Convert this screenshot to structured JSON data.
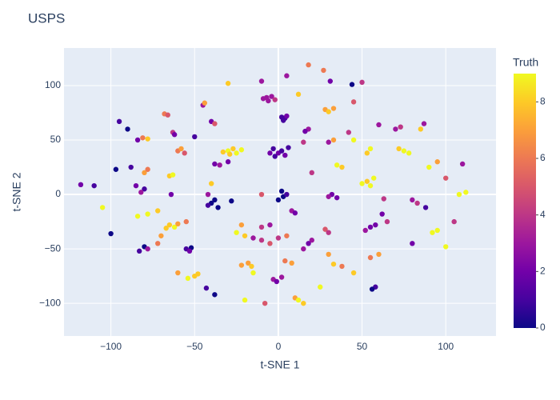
{
  "chart_data": {
    "type": "scatter",
    "title": "USPS",
    "x_label": "t-SNE 1",
    "y_label": "t-SNE 2",
    "xlim": [
      -128,
      130
    ],
    "ylim": [
      -130,
      134.5
    ],
    "xticks": [
      {
        "value": -100,
        "label": "−100"
      },
      {
        "value": -50,
        "label": "−50"
      },
      0,
      50,
      100
    ],
    "yticks": [
      {
        "value": -100,
        "label": "−100"
      },
      {
        "value": -50,
        "label": "−50"
      },
      0,
      50,
      100
    ],
    "grid": true,
    "colorscale": [
      "#0d0887",
      "#46039f",
      "#7201a8",
      "#9c179e",
      "#bd3786",
      "#d8576b",
      "#ed7953",
      "#fb9f3a",
      "#fdca26",
      "#f0f921"
    ],
    "colorbar": {
      "title": "Truth",
      "lim": [
        0,
        9
      ],
      "ticks": [
        0,
        2,
        4,
        6,
        8
      ]
    },
    "x": [
      -7,
      -4,
      -2,
      -6,
      -9,
      2,
      4,
      3,
      5,
      -3,
      0,
      2,
      4,
      -2,
      6,
      -5,
      -30,
      -27,
      -25,
      -33,
      -22,
      -29,
      -84,
      -81,
      -78,
      -68,
      -66,
      -63,
      -62,
      -60,
      -56,
      -58,
      -45,
      -44,
      -40,
      -38,
      -50,
      -38,
      -35,
      -30,
      -65,
      -63,
      -80,
      -78,
      -88,
      -97,
      -85,
      -80,
      -82,
      -64,
      -42,
      -40,
      -38,
      -42,
      -36,
      -28,
      -72,
      -78,
      -84,
      -65,
      -62,
      -60,
      -67,
      -55,
      -80,
      -83,
      -78,
      -70,
      -72,
      -55,
      -52,
      -53,
      -50,
      -54,
      -48,
      -60,
      -43,
      -38,
      -20,
      -22,
      -18,
      -16,
      -25,
      -20,
      -15,
      -10,
      -22,
      -10,
      -5,
      0,
      3,
      5,
      2,
      8,
      10,
      -5,
      0,
      5,
      -3,
      -1,
      2,
      4,
      8,
      -8,
      10,
      12,
      15,
      25,
      30,
      20,
      18,
      28,
      30,
      33,
      38,
      45,
      55,
      60,
      58,
      56,
      55,
      52,
      58,
      62,
      32,
      30,
      35,
      -10,
      50,
      53,
      55,
      57,
      63,
      80,
      83,
      88,
      80,
      92,
      95,
      108,
      112,
      105,
      100,
      75,
      78,
      72,
      85,
      87,
      70,
      73,
      55,
      53,
      45,
      30,
      33,
      38,
      35,
      28,
      30,
      33,
      42,
      15,
      18,
      16,
      12,
      45,
      60,
      90,
      95,
      110,
      -90,
      -95,
      -110,
      -105,
      -30,
      -10,
      5,
      18,
      27,
      31,
      44,
      50,
      65,
      15,
      -100,
      -118,
      100,
      -15,
      20,
      -40
    ],
    "y": [
      89,
      90,
      87,
      86,
      88,
      71,
      70,
      68,
      72,
      42,
      38,
      40,
      36,
      35,
      43,
      38,
      40,
      42,
      38,
      39,
      41,
      37,
      50,
      52,
      51,
      74,
      73,
      57,
      55,
      40,
      38,
      42,
      82,
      84,
      67,
      65,
      53,
      28,
      27,
      30,
      17,
      18,
      20,
      23,
      25,
      23,
      8,
      5,
      2,
      0,
      0,
      -8,
      -5,
      -10,
      -12,
      -6,
      -15,
      -18,
      -20,
      -28,
      -30,
      -27,
      -31,
      -25,
      -48,
      -52,
      -50,
      -38,
      -45,
      -50,
      -49,
      -52,
      -75,
      -77,
      -73,
      -72,
      -86,
      -92,
      -97,
      -65,
      -63,
      -66,
      -35,
      -38,
      -40,
      -42,
      -28,
      -30,
      -28,
      -5,
      -2,
      0,
      3,
      -15,
      -17,
      -45,
      -40,
      -38,
      -78,
      -80,
      -76,
      -61,
      -63,
      -100,
      -95,
      -97,
      -100,
      -85,
      -55,
      -42,
      -45,
      -32,
      -35,
      -64,
      -66,
      -72,
      -58,
      -55,
      -85,
      -87,
      -30,
      -33,
      -28,
      -18,
      0,
      -2,
      -3,
      0,
      10,
      12,
      8,
      15,
      -4,
      -5,
      -8,
      -12,
      -45,
      -35,
      -33,
      0,
      2,
      -25,
      15,
      40,
      38,
      42,
      60,
      65,
      60,
      62,
      42,
      38,
      50,
      48,
      50,
      25,
      27,
      78,
      76,
      79,
      57,
      48,
      60,
      58,
      92,
      85,
      64,
      25,
      30,
      28,
      60,
      67,
      8,
      -12,
      102,
      104,
      109,
      119,
      114,
      104,
      101,
      103,
      -25,
      -50,
      -36,
      9,
      -48,
      -72,
      20,
      10
    ],
    "color": [
      3,
      3,
      4,
      3,
      3,
      1,
      1,
      1,
      2,
      1,
      2,
      1,
      2,
      1,
      1,
      2,
      9,
      8,
      9,
      8,
      9,
      8,
      2,
      6,
      8,
      6,
      5,
      4,
      2,
      6,
      5,
      7,
      3,
      7,
      2,
      5,
      1,
      2,
      3,
      2,
      8,
      9,
      7,
      6,
      1,
      0,
      2,
      1,
      3,
      2,
      3,
      0,
      0,
      1,
      0,
      0,
      8,
      9,
      9,
      8,
      9,
      7,
      8,
      6,
      0,
      1,
      3,
      7,
      6,
      1,
      0,
      2,
      8,
      9,
      8,
      7,
      1,
      0,
      9,
      7,
      7,
      8,
      9,
      8,
      3,
      4,
      7,
      4,
      3,
      0,
      0,
      1,
      0,
      3,
      2,
      5,
      4,
      6,
      3,
      2,
      3,
      6,
      7,
      5,
      7,
      9,
      8,
      9,
      7,
      3,
      2,
      5,
      4,
      8,
      6,
      8,
      6,
      7,
      1,
      0,
      2,
      3,
      2,
      2,
      2,
      3,
      2,
      5,
      9,
      8,
      9,
      9,
      4,
      3,
      4,
      1,
      2,
      9,
      9,
      9,
      9,
      4,
      5,
      9,
      9,
      8,
      8,
      3,
      3,
      4,
      9,
      8,
      9,
      3,
      7,
      8,
      9,
      7,
      8,
      7,
      4,
      4,
      3,
      2,
      8,
      5,
      3,
      9,
      7,
      3,
      0,
      1,
      1,
      9,
      8,
      3,
      3,
      6,
      6,
      2,
      0,
      4,
      4,
      3,
      0,
      2,
      9,
      9,
      4,
      8
    ]
  }
}
